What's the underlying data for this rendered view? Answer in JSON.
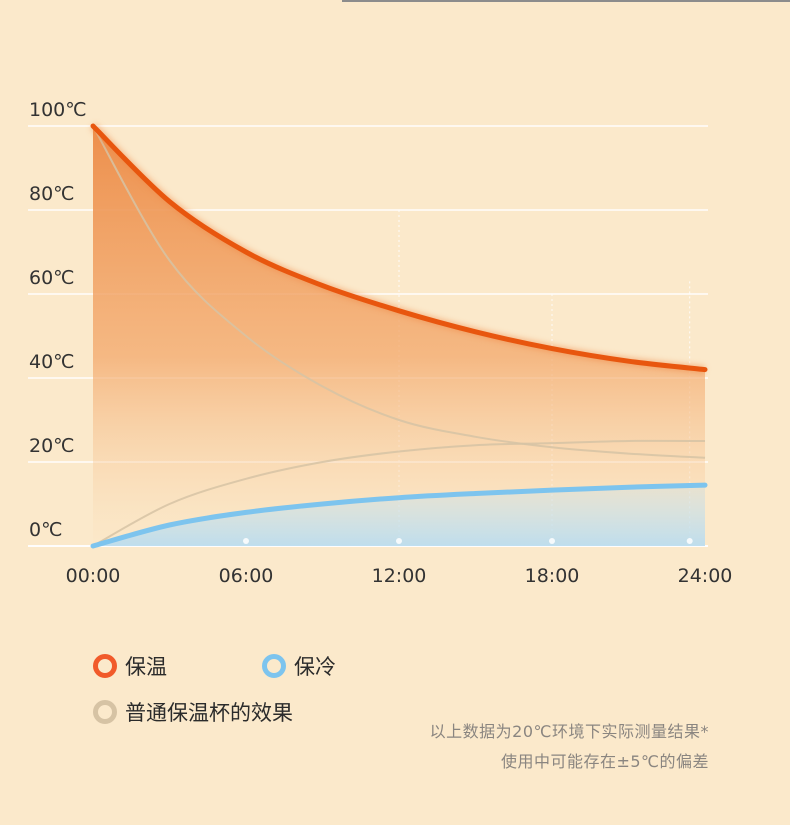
{
  "chart_data": {
    "type": "line",
    "x": [
      "00:00",
      "06:00",
      "12:00",
      "18:00",
      "24:00"
    ],
    "ylim": [
      0,
      100
    ],
    "yticks": [
      "0℃",
      "20℃",
      "40℃",
      "60℃",
      "80℃",
      "100℃"
    ],
    "series": [
      {
        "name": "保温",
        "color": "#e8560e",
        "x": [
          0,
          3,
          6,
          9,
          12,
          15,
          18,
          21,
          24
        ],
        "values": [
          100,
          82,
          70,
          62,
          56,
          51,
          47,
          44,
          42
        ]
      },
      {
        "name": "保冷",
        "color": "#7dc4ee",
        "x": [
          0,
          3,
          6,
          9,
          12,
          15,
          18,
          21,
          24
        ],
        "values": [
          0,
          5,
          8,
          10,
          11.5,
          12.5,
          13.3,
          14,
          14.5
        ]
      },
      {
        "name": "普通保温杯的效果",
        "color": "#d6c3a4",
        "x": [
          0,
          3,
          6,
          9,
          12,
          15,
          18,
          21,
          24
        ],
        "values": [
          100,
          68,
          50,
          38,
          30,
          26,
          23.5,
          22,
          21
        ]
      },
      {
        "name": "",
        "color": "#d6c3a4",
        "x": [
          0,
          3,
          6,
          9,
          12,
          15,
          18,
          21,
          24
        ],
        "values": [
          0,
          10,
          16,
          20,
          22.5,
          24,
          24.5,
          25,
          25
        ]
      }
    ],
    "grid": true
  },
  "legend": {
    "hot": "保温",
    "cold": "保冷",
    "normal": "普通保温杯的效果"
  },
  "note": {
    "line1": "以上数据为20℃环境下实际测量结果*",
    "line2": "使用中可能存在±5℃的偏差"
  }
}
